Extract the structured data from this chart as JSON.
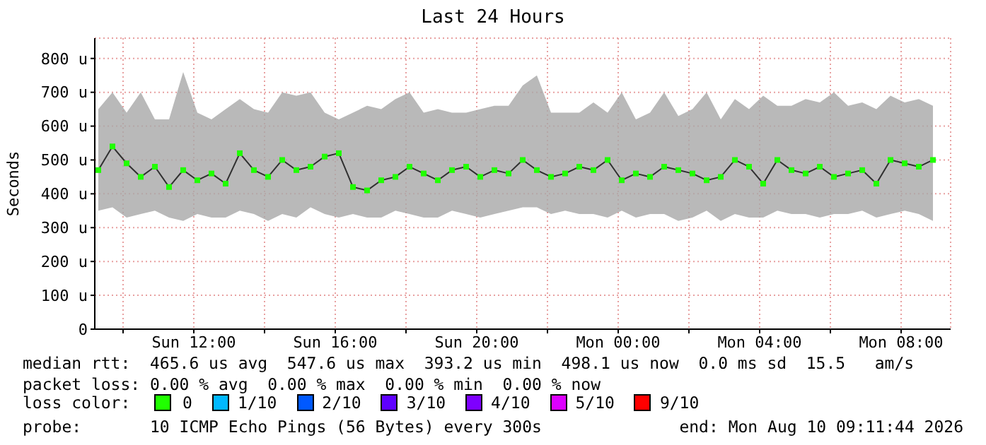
{
  "chart_data": {
    "type": "line",
    "title": "Last 24 Hours",
    "ylabel": "Seconds",
    "x": [
      "2026-08-09T09:18",
      "2026-08-09T09:42",
      "2026-08-09T10:06",
      "2026-08-09T10:30",
      "2026-08-09T10:54",
      "2026-08-09T11:18",
      "2026-08-09T11:42",
      "2026-08-09T12:06",
      "2026-08-09T12:30",
      "2026-08-09T12:54",
      "2026-08-09T13:18",
      "2026-08-09T13:42",
      "2026-08-09T14:06",
      "2026-08-09T14:30",
      "2026-08-09T14:54",
      "2026-08-09T15:18",
      "2026-08-09T15:42",
      "2026-08-09T16:06",
      "2026-08-09T16:30",
      "2026-08-09T16:54",
      "2026-08-09T17:18",
      "2026-08-09T17:42",
      "2026-08-09T18:06",
      "2026-08-09T18:30",
      "2026-08-09T18:54",
      "2026-08-09T19:18",
      "2026-08-09T19:42",
      "2026-08-09T20:06",
      "2026-08-09T20:30",
      "2026-08-09T20:54",
      "2026-08-09T21:18",
      "2026-08-09T21:42",
      "2026-08-09T22:06",
      "2026-08-09T22:30",
      "2026-08-09T22:54",
      "2026-08-09T23:18",
      "2026-08-09T23:42",
      "2026-08-10T00:06",
      "2026-08-10T00:30",
      "2026-08-10T00:54",
      "2026-08-10T01:18",
      "2026-08-10T01:42",
      "2026-08-10T02:06",
      "2026-08-10T02:30",
      "2026-08-10T02:54",
      "2026-08-10T03:18",
      "2026-08-10T03:42",
      "2026-08-10T04:06",
      "2026-08-10T04:30",
      "2026-08-10T04:54",
      "2026-08-10T05:18",
      "2026-08-10T05:42",
      "2026-08-10T06:06",
      "2026-08-10T06:30",
      "2026-08-10T06:54",
      "2026-08-10T07:18",
      "2026-08-10T07:42",
      "2026-08-10T08:06",
      "2026-08-10T08:30",
      "2026-08-10T08:54"
    ],
    "series": [
      {
        "name": "0",
        "color": "#20ff00",
        "values": [
          470,
          540,
          490,
          450,
          480,
          420,
          470,
          440,
          460,
          430,
          520,
          470,
          450,
          500,
          470,
          480,
          510,
          520,
          420,
          410,
          440,
          450,
          480,
          460,
          440,
          470,
          480,
          450,
          470,
          460,
          500,
          470,
          450,
          460,
          480,
          470,
          500,
          440,
          460,
          450,
          480,
          470,
          460,
          440,
          450,
          500,
          480,
          430,
          500,
          470,
          460,
          480,
          450,
          460,
          470,
          430,
          500,
          490,
          480,
          500
        ],
        "lower": [
          350,
          360,
          330,
          340,
          350,
          330,
          320,
          340,
          330,
          330,
          350,
          340,
          320,
          340,
          330,
          360,
          340,
          330,
          340,
          330,
          330,
          350,
          340,
          330,
          330,
          350,
          340,
          330,
          340,
          350,
          360,
          360,
          340,
          350,
          340,
          340,
          330,
          350,
          330,
          340,
          340,
          320,
          330,
          350,
          320,
          340,
          330,
          330,
          350,
          340,
          340,
          330,
          340,
          340,
          350,
          330,
          340,
          350,
          340,
          320
        ],
        "upper": [
          650,
          700,
          640,
          700,
          620,
          620,
          760,
          640,
          620,
          650,
          680,
          650,
          640,
          700,
          690,
          700,
          640,
          620,
          640,
          660,
          650,
          680,
          700,
          640,
          650,
          640,
          640,
          650,
          660,
          660,
          720,
          750,
          640,
          640,
          640,
          670,
          640,
          700,
          620,
          640,
          700,
          630,
          650,
          700,
          620,
          680,
          650,
          690,
          660,
          660,
          680,
          670,
          700,
          660,
          670,
          650,
          690,
          670,
          680,
          660
        ]
      }
    ],
    "xlim": [
      "2026-08-09T09:12",
      "2026-08-10T09:24"
    ],
    "xticks": [
      {
        "value": "2026-08-09T10:00",
        "label": null
      },
      {
        "value": "2026-08-09T12:00",
        "label": "Sun 12:00"
      },
      {
        "value": "2026-08-09T14:00",
        "label": null
      },
      {
        "value": "2026-08-09T16:00",
        "label": "Sun 16:00"
      },
      {
        "value": "2026-08-09T18:00",
        "label": null
      },
      {
        "value": "2026-08-09T20:00",
        "label": "Sun 20:00"
      },
      {
        "value": "2026-08-09T22:00",
        "label": null
      },
      {
        "value": "2026-08-10T00:00",
        "label": "Mon 00:00"
      },
      {
        "value": "2026-08-10T02:00",
        "label": null
      },
      {
        "value": "2026-08-10T04:00",
        "label": "Mon 04:00"
      },
      {
        "value": "2026-08-10T06:00",
        "label": null
      },
      {
        "value": "2026-08-10T08:00",
        "label": "Mon 08:00"
      }
    ],
    "ylim": [
      0,
      860
    ],
    "yticks": [
      0,
      {
        "value": 100,
        "label": "100 u"
      },
      {
        "value": 200,
        "label": "200 u"
      },
      {
        "value": 300,
        "label": "300 u"
      },
      {
        "value": 400,
        "label": "400 u"
      },
      {
        "value": 500,
        "label": "500 u"
      },
      {
        "value": 600,
        "label": "600 u"
      },
      {
        "value": 700,
        "label": "700 u"
      },
      {
        "value": 800,
        "label": "800 u"
      }
    ],
    "grid": true,
    "marker": "square",
    "legend": "bottom",
    "annotations": [
      "median rtt:  465.6 us avg  547.6 us max  393.2 us min  498.1 us now  0.0 ms sd  15.5   am/s",
      "packet loss: 0.00 % avg  0.00 % max  0.00 % min  0.00 % now",
      "loss color:",
      "1/10",
      "2/10",
      "3/10",
      "4/10",
      "5/10",
      "9/10",
      "probe:       10 ICMP Echo Pings (56 Bytes) every 300s",
      "end: Mon Aug 10 09:11:44 2026"
    ]
  }
}
